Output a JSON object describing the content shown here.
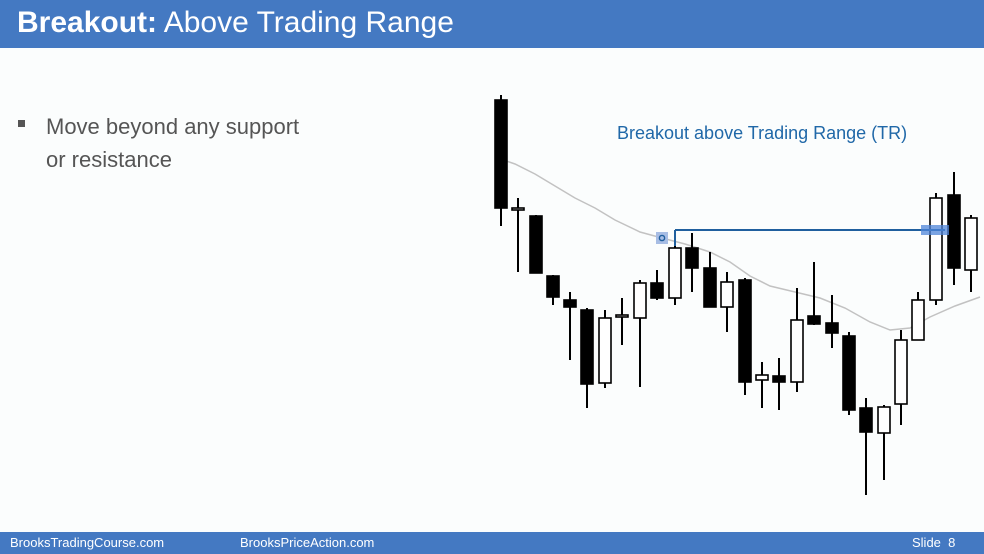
{
  "slide": {
    "title_bold": "Breakout:",
    "title_rest": " Above Trading Range",
    "bullets": [
      {
        "text": "Move beyond any support or resistance"
      }
    ],
    "annotation": "Breakout above Trading Range (TR)"
  },
  "footer": {
    "left_link": "BrooksTradingCourse.com",
    "center_link": "BrooksPriceAction.com",
    "slide_label": "Slide",
    "slide_number": "8"
  },
  "colors": {
    "theme_blue": "#4479c2",
    "annotation_blue": "#2068a8",
    "resistance_line": "#1f5f9e",
    "moving_average": "#c2c2c2",
    "bear_bar": "#000000",
    "bull_bar": "#ffffff"
  }
}
